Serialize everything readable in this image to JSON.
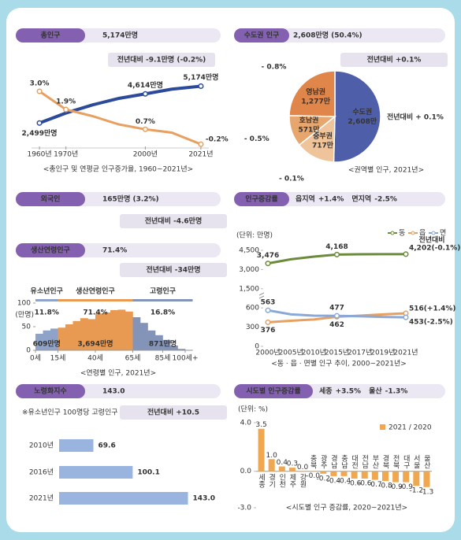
{
  "panels": [
    {
      "label": "총인구",
      "value": "5,174만명",
      "change": "전년대비 -9.1만명 (-0.2%)"
    },
    {
      "label": "수도권 인구",
      "value": "2,608만명 (50.4%)",
      "change": "전년대비 +0.1%"
    },
    {
      "label": "외국인",
      "value": "165만명 (3.2%)",
      "change": "전년대비 -4.6만명"
    },
    {
      "label": "생산연령인구",
      "value": "71.4%",
      "change": "전년대비 -34만명"
    },
    {
      "label": "인구증감률",
      "highlights": [
        {
          "text": "읍지역",
          "value": "+1.4%"
        },
        {
          "text": "면지역",
          "value": "-2.5%"
        }
      ]
    },
    {
      "label": "노령화지수",
      "value": "143.0",
      "change": "전년대비 +10.5",
      "note": "※유소년인구 100명당 고령인구"
    },
    {
      "label": "시도별 인구증감률",
      "highlights": [
        {
          "text": "세종",
          "value": "+3.5%"
        },
        {
          "text": "울산",
          "value": "-1.3%"
        }
      ]
    }
  ],
  "chart_data": [
    {
      "type": "line",
      "title": "<총인구 및 연평균 인구증가율, 1960~2021년>",
      "x": [
        1960,
        1970,
        1980,
        1990,
        2000,
        2010,
        2021
      ],
      "xlim": [
        1957,
        2024
      ],
      "xticks": [
        {
          "value": 1960,
          "label": "1960년"
        },
        {
          "value": 1970,
          "label": "1970년"
        },
        {
          "value": 2000,
          "label": "2000년"
        },
        {
          "value": 2021,
          "label": "2021년"
        }
      ],
      "ylim": [
        0,
        6000
      ],
      "y2lim": [
        -1,
        4
      ],
      "series": [
        {
          "color": "#2c4a9a",
          "values": [
            2499,
            3224,
            3812,
            4287,
            4614,
            4955,
            5174
          ],
          "value_labels": [
            "2,499만명",
            null,
            null,
            null,
            "4,614만명",
            null,
            "5,174만명"
          ]
        },
        {
          "color": "#e8a060",
          "axis": "y2",
          "values": [
            3.0,
            1.9,
            1.5,
            1.0,
            0.7,
            0.5,
            -0.2
          ],
          "value_labels": [
            "3.0%",
            "1.9%",
            null,
            null,
            "0.7%",
            null,
            "-0.2%"
          ]
        }
      ]
    },
    {
      "type": "pie",
      "title": "<권역별 인구, 2021년>",
      "categories": [
        "수도권",
        "중부권",
        "호남권",
        "영남권"
      ],
      "values": [
        2608,
        717,
        571,
        1277
      ],
      "value_labels": [
        "2,608만",
        "717만",
        "571만",
        "1,277만"
      ],
      "colors": [
        "#4f5ea8",
        "#f0c49a",
        "#e8a66f",
        "#e0864a"
      ],
      "annotations": [
        "전년대비 + 0.1%",
        "- 0.1%",
        "- 0.5%",
        "- 0.8%"
      ]
    },
    {
      "type": "area",
      "title": "<연령별 인구, 2021년>",
      "y_unit": "(만명)",
      "x": [
        0,
        5,
        10,
        15,
        20,
        25,
        30,
        35,
        40,
        45,
        50,
        55,
        60,
        65,
        70,
        75,
        80,
        85,
        90,
        95,
        100
      ],
      "values": [
        35,
        42,
        46,
        48,
        55,
        62,
        68,
        66,
        78,
        80,
        85,
        86,
        82,
        70,
        58,
        42,
        32,
        22,
        10,
        3,
        1
      ],
      "xlim": [
        0,
        100
      ],
      "ylim": [
        0,
        100
      ],
      "yticks": [
        0,
        50,
        100
      ],
      "xticks": [
        {
          "value": 0,
          "label": "0세"
        },
        {
          "value": 15,
          "label": "15세"
        },
        {
          "value": 40,
          "label": "40세"
        },
        {
          "value": 65,
          "label": "65세"
        },
        {
          "value": 85,
          "label": "85세"
        },
        {
          "value": 100,
          "label": "100세+"
        }
      ],
      "groups": [
        {
          "name": "유소년인구",
          "share": "11.8%",
          "total": "609만명",
          "color": "#8fa3c9"
        },
        {
          "name": "생산연령인구",
          "share": "71.4%",
          "total": "3,694만명",
          "color": "#e99a52"
        },
        {
          "name": "고령인구",
          "share": "16.8%",
          "total": "871만명",
          "color": "#8394b8"
        }
      ]
    },
    {
      "type": "line",
      "title": "<동 · 읍 · 면별 인구 추이, 2000~2021년>",
      "y_unit": "(단위: 만명)",
      "annotation": "전년대비",
      "categories": [
        "2000년",
        "2005년",
        "2010년",
        "2015년",
        "2017년",
        "2019년",
        "2021년"
      ],
      "ylim": [
        0,
        4500
      ],
      "yticks": [
        0,
        300,
        600,
        {
          "value": 1500,
          "label": "1,500"
        },
        {
          "value": 3000,
          "label": "3,000"
        },
        {
          "value": 4500,
          "label": "4,500"
        }
      ],
      "series": [
        {
          "name": "동",
          "color": "#6b8a3a",
          "values": [
            3476,
            3800,
            4010,
            4168,
            4190,
            4198,
            4202
          ],
          "value_labels": [
            "3,476",
            null,
            null,
            "4,168",
            null,
            null,
            "4,202(-0.1%)"
          ]
        },
        {
          "name": "읍",
          "color": "#e8a060",
          "values": [
            376,
            400,
            420,
            462,
            480,
            500,
            516
          ],
          "value_labels": [
            "376",
            null,
            null,
            "462",
            null,
            null,
            "516(+1.4%)"
          ]
        },
        {
          "name": "면",
          "color": "#8aa8d8",
          "values": [
            563,
            500,
            480,
            477,
            470,
            460,
            453
          ],
          "value_labels": [
            "563",
            null,
            null,
            "477",
            null,
            null,
            "453(-2.5%)"
          ]
        }
      ]
    },
    {
      "type": "barh",
      "categories": [
        "2010년",
        "2016년",
        "2021년"
      ],
      "values": [
        69.6,
        100.1,
        143.0
      ],
      "value_labels": [
        "69.6",
        "100.1",
        "143.0"
      ],
      "xlim": [
        43,
        150
      ],
      "color": "#9ab4e0"
    },
    {
      "type": "bar",
      "title": "<시도별 인구 증감률, 2020~2021년>",
      "y_unit": "(단위: %)",
      "legend": "2021 / 2020",
      "color": "#f0a850",
      "categories": [
        "세종",
        "경기",
        "인천",
        "제주",
        "강원",
        "충북",
        "광주",
        "경남",
        "충남",
        "대전",
        "전남",
        "부산",
        "경북",
        "전북",
        "대구",
        "서울",
        "울산"
      ],
      "values": [
        3.5,
        1.0,
        0.4,
        0.3,
        0.0,
        -0.0,
        -0.2,
        -0.4,
        -0.4,
        -0.6,
        -0.6,
        -0.7,
        -0.8,
        -0.9,
        -0.9,
        -1.2,
        -1.3
      ],
      "value_labels": [
        "3.5",
        "1.0",
        "0.4",
        "0.3",
        "0.0",
        "-0.0",
        "-0.2",
        "-0.4",
        "-0.4",
        "-0.6",
        "-0.6",
        "-0.7",
        "-0.8",
        "-0.9",
        "-0.9",
        "-1.2",
        "-1.3"
      ],
      "ylim": [
        -3,
        4
      ],
      "yticks": [
        {
          "value": 4,
          "label": "4.0"
        },
        {
          "value": 0,
          "label": "0.0"
        },
        {
          "value": -3,
          "label": "-3.0"
        }
      ]
    }
  ]
}
